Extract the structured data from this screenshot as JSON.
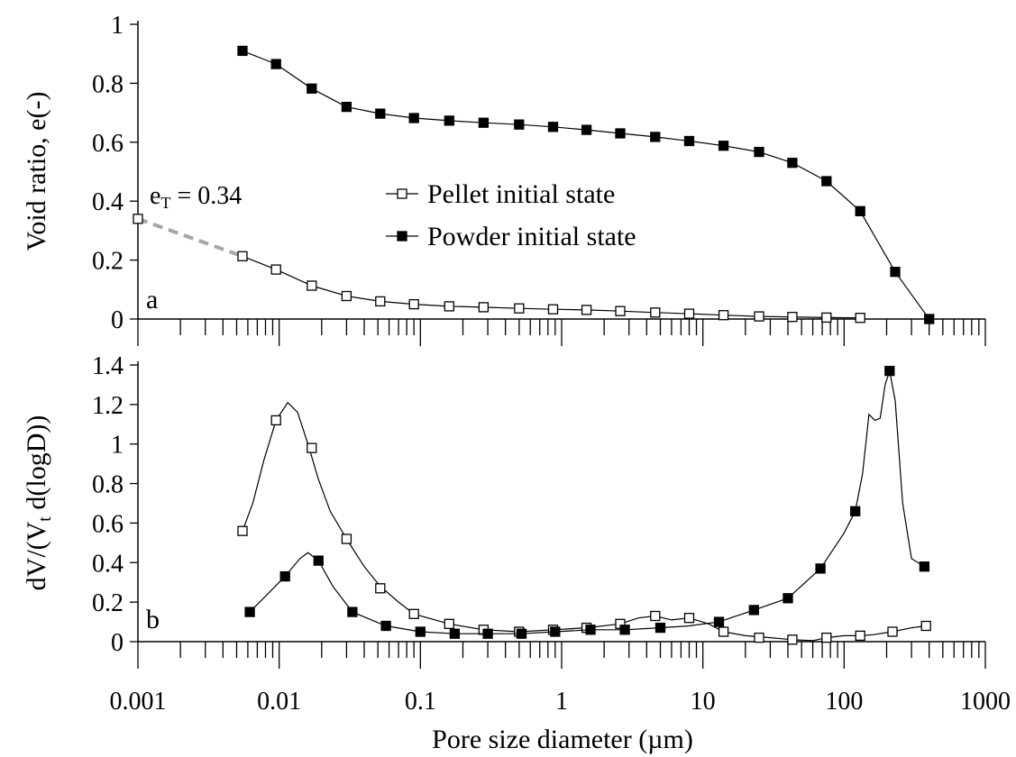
{
  "chart_data": [
    {
      "panel": "a",
      "type": "line",
      "xscale": "log",
      "xlim": [
        0.001,
        1000
      ],
      "ylim": [
        0,
        1
      ],
      "yticks": [
        "0",
        "0.2",
        "0.4",
        "0.6",
        "0.8",
        "1"
      ],
      "ylabel": "Void ratio, e(-)",
      "legend": {
        "position": "center-right",
        "entries": [
          "Pellet initial state",
          "Powder initial state"
        ]
      },
      "annotation": {
        "main": "e",
        "sub": "T",
        "rest": " = 0.34"
      },
      "series": [
        {
          "name": "Pellet initial state",
          "marker": "open-square",
          "x": [
            0.0055,
            0.0095,
            0.017,
            0.03,
            0.052,
            0.09,
            0.16,
            0.28,
            0.5,
            0.87,
            1.5,
            2.6,
            4.6,
            8,
            14,
            25,
            43,
            75,
            130
          ],
          "y": [
            0.213,
            0.168,
            0.113,
            0.078,
            0.06,
            0.05,
            0.043,
            0.04,
            0.036,
            0.033,
            0.031,
            0.027,
            0.022,
            0.018,
            0.013,
            0.009,
            0.007,
            0.005,
            0.004
          ]
        },
        {
          "name": "Powder initial state",
          "marker": "filled-square",
          "x": [
            0.0055,
            0.0095,
            0.017,
            0.03,
            0.052,
            0.09,
            0.16,
            0.28,
            0.5,
            0.87,
            1.5,
            2.6,
            4.6,
            8,
            14,
            25,
            43,
            75,
            130,
            230,
            400
          ],
          "y": [
            0.91,
            0.865,
            0.782,
            0.72,
            0.697,
            0.682,
            0.673,
            0.666,
            0.66,
            0.652,
            0.642,
            0.63,
            0.618,
            0.604,
            0.588,
            0.567,
            0.53,
            0.468,
            0.366,
            0.16,
            0.0
          ]
        }
      ],
      "extrapolation": {
        "style": "dashed-gray",
        "x": [
          0.001,
          0.0055
        ],
        "y": [
          0.34,
          0.213
        ]
      },
      "extra_point": {
        "x": 0.001,
        "y": 0.34,
        "marker": "open-square"
      }
    },
    {
      "panel": "b",
      "type": "line",
      "xscale": "log",
      "xlim": [
        0.001,
        1000
      ],
      "ylim": [
        0,
        1.4
      ],
      "yticks": [
        "0",
        "0.2",
        "0.4",
        "0.6",
        "0.8",
        "1",
        "1.2",
        "1.4"
      ],
      "xticks": [
        "0.001",
        "0.01",
        "0.1",
        "1",
        "10",
        "100",
        "1000"
      ],
      "xlabel": "Pore size diameter (µm)",
      "ylabel": {
        "main": "dV/(V",
        "sub": "t",
        "rest": " d(logD))"
      },
      "series": [
        {
          "name": "Pellet initial state",
          "marker": "open-square",
          "x": [
            0.0055,
            0.0095,
            0.017,
            0.03,
            0.052,
            0.09,
            0.16,
            0.28,
            0.5,
            0.87,
            1.5,
            2.6,
            4.6,
            8,
            14,
            25,
            43,
            75,
            130,
            220,
            380
          ],
          "y": [
            0.56,
            1.12,
            0.98,
            0.52,
            0.27,
            0.14,
            0.09,
            0.06,
            0.05,
            0.06,
            0.07,
            0.09,
            0.13,
            0.12,
            0.05,
            0.02,
            0.01,
            0.02,
            0.03,
            0.05,
            0.08
          ],
          "curve_x": [
            0.0055,
            0.0065,
            0.0078,
            0.0095,
            0.0115,
            0.0135,
            0.016,
            0.019,
            0.023,
            0.03,
            0.04,
            0.052,
            0.07,
            0.09,
            0.16,
            0.28,
            0.5,
            0.87,
            1.5,
            2.6,
            3.5,
            4.6,
            6,
            8,
            11,
            14,
            20,
            30,
            43,
            60,
            75,
            100,
            130,
            160,
            220,
            300,
            380
          ],
          "curve_y": [
            0.56,
            0.7,
            0.92,
            1.12,
            1.21,
            1.16,
            1.0,
            0.82,
            0.66,
            0.52,
            0.38,
            0.28,
            0.2,
            0.14,
            0.09,
            0.06,
            0.05,
            0.06,
            0.07,
            0.09,
            0.12,
            0.13,
            0.11,
            0.12,
            0.09,
            0.05,
            0.03,
            0.02,
            0.01,
            0.005,
            0.02,
            0.03,
            0.03,
            0.035,
            0.05,
            0.07,
            0.08
          ]
        },
        {
          "name": "Powder initial state",
          "marker": "filled-square",
          "x": [
            0.0062,
            0.011,
            0.019,
            0.033,
            0.057,
            0.1,
            0.175,
            0.3,
            0.52,
            0.9,
            1.6,
            2.8,
            5,
            13,
            23,
            40,
            68,
            120,
            210,
            370
          ],
          "y": [
            0.15,
            0.33,
            0.41,
            0.15,
            0.08,
            0.05,
            0.04,
            0.04,
            0.04,
            0.05,
            0.06,
            0.06,
            0.07,
            0.1,
            0.16,
            0.22,
            0.37,
            0.66,
            1.37,
            0.38
          ],
          "curve_x": [
            0.0062,
            0.008,
            0.011,
            0.014,
            0.016,
            0.019,
            0.024,
            0.033,
            0.057,
            0.1,
            0.175,
            0.3,
            0.52,
            0.9,
            1.6,
            2.8,
            5,
            8,
            13,
            23,
            40,
            68,
            100,
            120,
            135,
            150,
            165,
            180,
            195,
            210,
            230,
            260,
            300,
            370
          ],
          "curve_y": [
            0.15,
            0.23,
            0.33,
            0.42,
            0.45,
            0.41,
            0.28,
            0.15,
            0.08,
            0.05,
            0.04,
            0.04,
            0.04,
            0.05,
            0.06,
            0.06,
            0.07,
            0.08,
            0.1,
            0.16,
            0.22,
            0.37,
            0.55,
            0.66,
            0.85,
            1.15,
            1.12,
            1.13,
            1.3,
            1.37,
            1.22,
            0.7,
            0.42,
            0.38
          ]
        }
      ],
      "panel_letter": "b"
    }
  ]
}
